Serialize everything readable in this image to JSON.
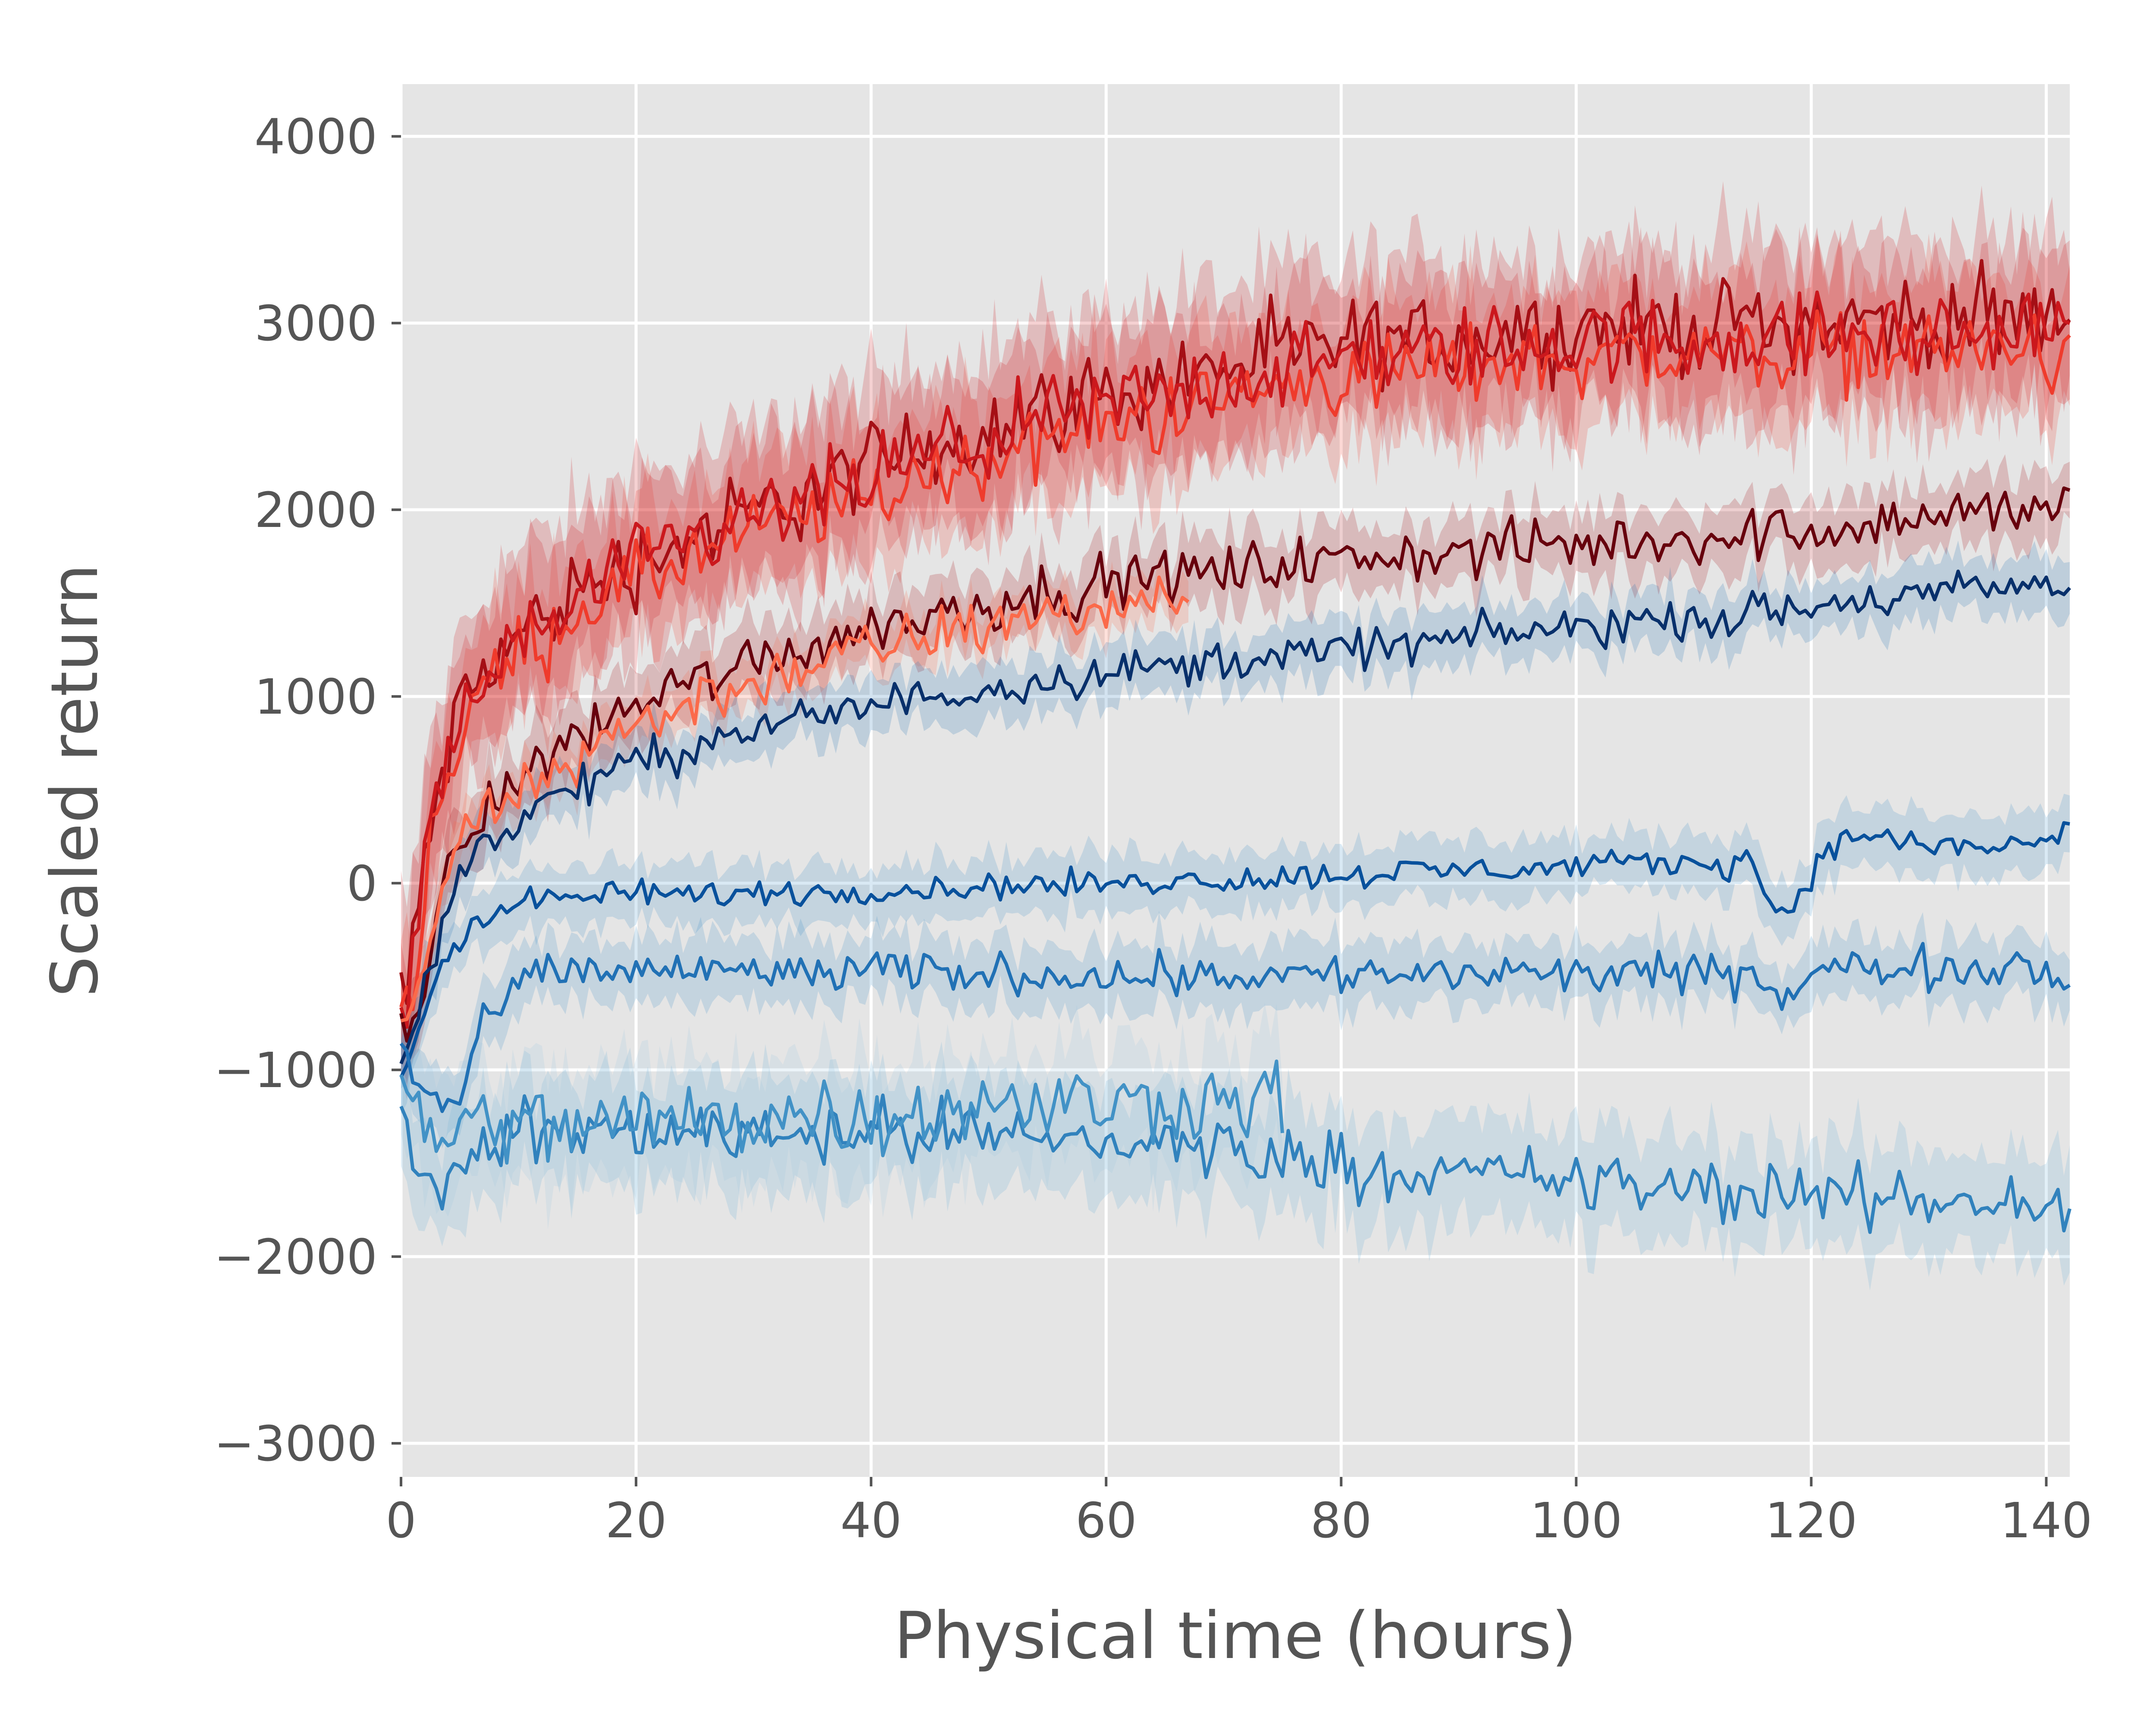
{
  "chart_data": {
    "type": "line",
    "xlabel": "Physical time (hours)",
    "ylabel": "Scaled return",
    "xlim": [
      0,
      142
    ],
    "ylim": [
      -3180,
      4280
    ],
    "xticks": [
      0,
      20,
      40,
      60,
      80,
      100,
      120,
      140
    ],
    "yticks": [
      -3000,
      -2000,
      -1000,
      0,
      1000,
      2000,
      3000,
      4000
    ],
    "x_tick_labels": [
      "0",
      "20",
      "40",
      "60",
      "80",
      "100",
      "120",
      "140"
    ],
    "y_tick_labels": [
      "−3000",
      "−2000",
      "−1000",
      "0",
      "1000",
      "2000",
      "3000",
      "4000"
    ],
    "grid": true,
    "legend": "none",
    "plot_background": "#e5e5e5",
    "x": [
      0,
      0.5,
      1,
      2,
      3,
      4,
      5,
      6,
      8,
      10,
      12,
      14,
      16,
      18,
      20,
      24,
      28,
      32,
      36,
      40,
      45,
      50,
      55,
      60,
      65,
      67,
      70,
      75,
      80,
      85,
      90,
      95,
      100,
      105,
      110,
      115,
      117,
      118,
      120,
      122,
      123,
      125,
      130,
      135,
      140,
      142
    ],
    "series": [
      {
        "color": "#a50f15",
        "band_color": "#cb181d",
        "band_halfwidth": 420,
        "noise": 200,
        "values": [
          -500,
          -650,
          -400,
          100,
          450,
          700,
          900,
          1050,
          1200,
          1320,
          1430,
          1520,
          1600,
          1660,
          1720,
          1830,
          1930,
          2030,
          2130,
          2230,
          2340,
          2450,
          2540,
          2620,
          2690,
          2720,
          2770,
          2830,
          2880,
          2910,
          2930,
          2950,
          2970,
          2980,
          2990,
          2995,
          3000,
          3000,
          3000,
          3000,
          3005,
          3010,
          3015,
          3020,
          3025,
          3050
        ]
      },
      {
        "color": "#ef3b2c",
        "band_color": "#ef3b2c",
        "band_halfwidth": 350,
        "noise": 180,
        "values": [
          -600,
          -700,
          -500,
          0,
          350,
          600,
          800,
          950,
          1100,
          1220,
          1330,
          1420,
          1500,
          1560,
          1620,
          1730,
          1830,
          1920,
          2000,
          2080,
          2180,
          2280,
          2380,
          2460,
          2530,
          2560,
          2600,
          2660,
          2710,
          2750,
          2780,
          2800,
          2820,
          2830,
          2840,
          2845,
          2850,
          2850,
          2850,
          2850,
          2850,
          2855,
          2860,
          2860,
          2860,
          2700
        ]
      },
      {
        "color": "#cb181d",
        "band_color": "#cb181d",
        "band_halfwidth": 380,
        "noise": 190,
        "values": [
          -550,
          -700,
          -450,
          50,
          400,
          650,
          850,
          1000,
          1150,
          1270,
          1380,
          1470,
          1550,
          1620,
          1680,
          1790,
          1890,
          1990,
          2080,
          2170,
          2280,
          2380,
          2470,
          2550,
          2620,
          2650,
          2690,
          2750,
          2800,
          2830,
          2860,
          2880,
          2900,
          2910,
          2920,
          2925,
          2930,
          2930,
          2930,
          2930,
          2930,
          2935,
          2940,
          2945,
          2950,
          2950
        ]
      },
      {
        "color": "#67000d",
        "band_color": "#a50f15",
        "band_halfwidth": 180,
        "noise": 120,
        "values": [
          -700,
          -800,
          -700,
          -450,
          -200,
          0,
          150,
          300,
          450,
          560,
          660,
          750,
          830,
          900,
          960,
          1060,
          1150,
          1230,
          1300,
          1370,
          1440,
          1500,
          1560,
          1600,
          1640,
          1655,
          1675,
          1700,
          1730,
          1750,
          1770,
          1790,
          1810,
          1830,
          1850,
          1870,
          1880,
          1885,
          1900,
          1910,
          1915,
          1930,
          1960,
          1990,
          2020,
          2060
        ]
      },
      {
        "color": "#fb6a4a",
        "band_color": "#fb6a4a",
        "band_halfwidth": 130,
        "noise": 130,
        "values": [
          -800,
          -850,
          -750,
          -400,
          -150,
          50,
          200,
          300,
          400,
          480,
          560,
          640,
          720,
          790,
          850,
          950,
          1040,
          1120,
          1190,
          1250,
          1320,
          1380,
          1430,
          1480,
          1520,
          1530,
          null,
          null,
          null,
          null,
          null,
          null,
          null,
          null,
          null,
          null,
          null,
          null,
          null,
          null,
          null,
          null,
          null,
          null,
          null,
          null
        ]
      },
      {
        "color": "#08306b",
        "band_color": "#2171b5",
        "band_halfwidth": 150,
        "noise": 90,
        "values": [
          -900,
          -950,
          -850,
          -550,
          -300,
          -100,
          50,
          150,
          250,
          340,
          420,
          490,
          550,
          600,
          640,
          720,
          790,
          850,
          900,
          950,
          1000,
          1050,
          1090,
          1130,
          1160,
          1170,
          1190,
          1220,
          1250,
          1280,
          1310,
          1340,
          1370,
          1400,
          1420,
          1440,
          1450,
          1455,
          1470,
          1490,
          1500,
          1520,
          1550,
          1570,
          1590,
          1600
        ]
      },
      {
        "color": "#08519c",
        "band_color": "#4292c6",
        "band_halfwidth": 160,
        "noise": 60,
        "values": [
          -1000,
          -950,
          -900,
          -700,
          -500,
          -400,
          -300,
          -220,
          -150,
          -110,
          -90,
          -80,
          -70,
          -60,
          -60,
          -60,
          -55,
          -50,
          -45,
          -40,
          -30,
          -20,
          -10,
          0,
          10,
          15,
          20,
          30,
          45,
          60,
          70,
          80,
          90,
          100,
          110,
          110,
          -150,
          -150,
          50,
          200,
          260,
          250,
          200,
          190,
          230,
          280
        ]
      },
      {
        "color": "#2171b5",
        "band_color": "#4292c6",
        "band_halfwidth": 170,
        "noise": 90,
        "values": [
          -800,
          -900,
          -1000,
          -1100,
          -1150,
          -1200,
          -1200,
          -900,
          -700,
          -550,
          -500,
          -480,
          -470,
          -470,
          -470,
          -470,
          -470,
          -480,
          -480,
          -480,
          -480,
          -480,
          -490,
          -490,
          -490,
          -490,
          -490,
          -490,
          -490,
          -490,
          -490,
          -490,
          -490,
          -490,
          -490,
          -490,
          -600,
          -600,
          -480,
          -460,
          -460,
          -460,
          -450,
          -440,
          -440,
          -560
        ]
      },
      {
        "color": "#3182bd",
        "band_color": "#6baed6",
        "band_halfwidth": 280,
        "noise": 140,
        "values": [
          -1300,
          -1350,
          -1400,
          -1500,
          -1600,
          -1650,
          -1550,
          -1450,
          -1380,
          -1350,
          -1340,
          -1330,
          -1330,
          -1330,
          -1320,
          -1320,
          -1320,
          -1320,
          -1320,
          -1330,
          -1340,
          -1350,
          -1370,
          -1380,
          -1400,
          -1410,
          -1420,
          -1460,
          -1500,
          -1530,
          -1560,
          -1580,
          -1600,
          -1620,
          -1640,
          -1660,
          -1670,
          -1670,
          -1680,
          -1690,
          -1690,
          -1700,
          -1700,
          -1700,
          -1700,
          -1800
        ]
      },
      {
        "color": "#4292c6",
        "band_color": "#9ecae1",
        "band_halfwidth": 300,
        "noise": 180,
        "values": [
          -1100,
          -1150,
          -1200,
          -1250,
          -1300,
          -1300,
          -1300,
          -1300,
          -1300,
          -1300,
          -1300,
          -1300,
          -1290,
          -1280,
          -1270,
          -1260,
          -1250,
          -1240,
          -1230,
          -1220,
          -1210,
          -1200,
          -1190,
          -1180,
          -1170,
          -1165,
          -1160,
          -1150,
          null,
          null,
          null,
          null,
          null,
          null,
          null,
          null,
          null,
          null,
          null,
          null,
          null,
          null,
          null,
          null,
          null,
          null
        ]
      }
    ]
  }
}
